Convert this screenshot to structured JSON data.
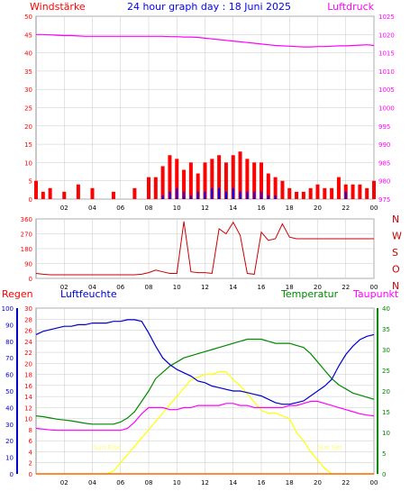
{
  "title": "24 hour graph day : 18 Juni 2025",
  "colors": {
    "wind": "#ff0000",
    "gust": "#0000ff",
    "pressure": "#ff00ff",
    "direction": "#cc0000",
    "humidity": "#0000cc",
    "temperature": "#008800",
    "dewpoint": "#ff00ff",
    "solar": "#ffff00",
    "uv": "#aaddff",
    "rain": "#ff6600",
    "plot_bg": "#ffffff",
    "grid": "#c8c8c8"
  },
  "x_ticks": [
    "02",
    "04",
    "06",
    "08",
    "10",
    "12",
    "14",
    "16",
    "18",
    "20",
    "22",
    "00"
  ],
  "chart_data": [
    {
      "type": "bar",
      "panel": "wind_pressure",
      "title": "24 hour graph day : 18 Juni 2025",
      "left_label": "Windstärke",
      "right_label": "Luftdruck",
      "x": [
        "00:00",
        "00:30",
        "01:00",
        "01:30",
        "02:00",
        "02:30",
        "03:00",
        "03:30",
        "04:00",
        "04:30",
        "05:00",
        "05:30",
        "06:00",
        "06:30",
        "07:00",
        "07:30",
        "08:00",
        "08:30",
        "09:00",
        "09:30",
        "10:00",
        "10:30",
        "11:00",
        "11:30",
        "12:00",
        "12:30",
        "13:00",
        "13:30",
        "14:00",
        "14:30",
        "15:00",
        "15:30",
        "16:00",
        "16:30",
        "17:00",
        "17:30",
        "18:00",
        "18:30",
        "19:00",
        "19:30",
        "20:00",
        "20:30",
        "21:00",
        "21:30",
        "22:00",
        "22:30",
        "23:00",
        "23:30",
        "24:00"
      ],
      "ylim_left": [
        0,
        50
      ],
      "ylim_right": [
        975,
        1025
      ],
      "yticks_left": [
        "0",
        "5",
        "10",
        "15",
        "20",
        "25",
        "30",
        "35",
        "40",
        "45",
        "50"
      ],
      "yticks_right": [
        "975",
        "980",
        "985",
        "990",
        "995",
        "1000",
        "1005",
        "1010",
        "1015",
        "1020",
        "1025"
      ],
      "series": [
        {
          "name": "",
          "axis": "left",
          "values": [
            5,
            2,
            3,
            0,
            2,
            0,
            4,
            0,
            3,
            0,
            0,
            2,
            0,
            0,
            3,
            0,
            6,
            6,
            9,
            12,
            11,
            8,
            10,
            7,
            10,
            11,
            12,
            10,
            12,
            13,
            11,
            10,
            10,
            7,
            6,
            5,
            3,
            2,
            2,
            3,
            4,
            3,
            3,
            6,
            4,
            4,
            4,
            3,
            5
          ]
        },
        {
          "name": "",
          "axis": "left",
          "values": [
            0,
            0,
            0,
            0,
            0,
            0,
            0,
            0,
            0,
            0,
            0,
            0,
            0,
            0,
            0,
            0,
            0,
            0,
            1,
            2,
            3,
            2,
            1,
            2,
            2,
            3,
            3,
            2,
            3,
            2,
            2,
            2,
            2,
            1,
            1,
            0,
            0,
            0,
            0,
            0,
            0,
            0,
            0,
            0,
            2,
            0,
            0,
            0,
            0
          ]
        },
        {
          "name": "",
          "axis": "right",
          "values": [
            1020.0,
            1020.0,
            1019.9,
            1019.8,
            1019.7,
            1019.7,
            1019.6,
            1019.5,
            1019.5,
            1019.5,
            1019.5,
            1019.5,
            1019.5,
            1019.5,
            1019.5,
            1019.5,
            1019.5,
            1019.5,
            1019.5,
            1019.4,
            1019.4,
            1019.3,
            1019.3,
            1019.2,
            1019.0,
            1018.8,
            1018.6,
            1018.4,
            1018.2,
            1018.0,
            1017.8,
            1017.6,
            1017.4,
            1017.2,
            1017.0,
            1016.9,
            1016.8,
            1016.7,
            1016.6,
            1016.6,
            1016.7,
            1016.7,
            1016.8,
            1016.9,
            1016.9,
            1017.0,
            1017.1,
            1017.2,
            1017.0
          ]
        }
      ]
    },
    {
      "type": "line",
      "panel": "wind_direction",
      "x": [
        "00:00",
        "00:30",
        "01:00",
        "01:30",
        "02:00",
        "02:30",
        "03:00",
        "03:30",
        "04:00",
        "04:30",
        "05:00",
        "05:30",
        "06:00",
        "06:30",
        "07:00",
        "07:30",
        "08:00",
        "08:30",
        "09:00",
        "09:30",
        "10:00",
        "10:30",
        "11:00",
        "11:30",
        "12:00",
        "12:30",
        "13:00",
        "13:30",
        "14:00",
        "14:30",
        "15:00",
        "15:30",
        "16:00",
        "16:30",
        "17:00",
        "17:30",
        "18:00",
        "18:30",
        "19:00",
        "19:30",
        "20:00",
        "20:30",
        "21:00",
        "21:30",
        "22:00",
        "22:30",
        "23:00",
        "23:30",
        "24:00"
      ],
      "ylim": [
        0,
        360
      ],
      "yticks": [
        "0",
        "90",
        "180",
        "270",
        "360"
      ],
      "compass": [
        "N",
        "W",
        "S",
        "O",
        "N"
      ],
      "series": [
        {
          "name": "",
          "values": [
            30,
            25,
            22,
            22,
            22,
            22,
            22,
            22,
            22,
            22,
            22,
            22,
            22,
            22,
            22,
            25,
            35,
            50,
            40,
            30,
            30,
            345,
            40,
            35,
            35,
            30,
            300,
            270,
            340,
            260,
            30,
            25,
            280,
            230,
            240,
            330,
            250,
            240,
            240,
            240,
            240,
            240,
            240,
            240,
            240,
            240,
            240,
            240,
            240
          ]
        }
      ]
    },
    {
      "type": "line",
      "panel": "climate",
      "left_labels": [
        "Regen",
        "Luftfeuchte"
      ],
      "right_labels": [
        "Temperatur",
        "Taupunkt"
      ],
      "sun_labels": {
        "rise": "Sun Rise",
        "set": "Sun Set"
      },
      "sun_times": [
        "05:00",
        "21:00"
      ],
      "x": [
        "00:00",
        "00:30",
        "01:00",
        "01:30",
        "02:00",
        "02:30",
        "03:00",
        "03:30",
        "04:00",
        "04:30",
        "05:00",
        "05:30",
        "06:00",
        "06:30",
        "07:00",
        "07:30",
        "08:00",
        "08:30",
        "09:00",
        "09:30",
        "10:00",
        "10:30",
        "11:00",
        "11:30",
        "12:00",
        "12:30",
        "13:00",
        "13:30",
        "14:00",
        "14:30",
        "15:00",
        "15:30",
        "16:00",
        "16:30",
        "17:00",
        "17:30",
        "18:00",
        "18:30",
        "19:00",
        "19:30",
        "20:00",
        "20:30",
        "21:00",
        "21:30",
        "22:00",
        "22:30",
        "23:00",
        "23:30",
        "24:00"
      ],
      "humidity_axis": {
        "ylim": [
          0,
          100
        ],
        "ticks": [
          "0",
          "10",
          "20",
          "30",
          "40",
          "50",
          "60",
          "70",
          "80",
          "90",
          "100"
        ]
      },
      "rain_axis": {
        "ylim": [
          0,
          30
        ],
        "ticks": [
          "0",
          "2",
          "4",
          "6",
          "8",
          "10",
          "12",
          "14",
          "16",
          "18",
          "20",
          "22",
          "24",
          "26",
          "28",
          "30"
        ]
      },
      "temp_axis": {
        "ylim": [
          0,
          40
        ],
        "ticks": [
          "0",
          "5",
          "10",
          "15",
          "20",
          "25",
          "30",
          "35",
          "40"
        ]
      },
      "series": [
        {
          "name": "Luftfeuchte",
          "axis": "humidity",
          "values": [
            84,
            86,
            87,
            88,
            89,
            89,
            90,
            90,
            91,
            91,
            91,
            92,
            92,
            93,
            93,
            92,
            85,
            77,
            70,
            66,
            63,
            61,
            59,
            56,
            55,
            53,
            52,
            51,
            50,
            50,
            49,
            48,
            47,
            45,
            43,
            42,
            42,
            43,
            44,
            47,
            50,
            53,
            57,
            65,
            72,
            77,
            81,
            83,
            84
          ]
        },
        {
          "name": "Temperatur",
          "axis": "temp",
          "values": [
            14.0,
            13.8,
            13.5,
            13.2,
            13.0,
            12.8,
            12.5,
            12.2,
            12.0,
            12.0,
            12.0,
            12.0,
            12.5,
            13.5,
            15.0,
            17.5,
            20.0,
            23.0,
            24.5,
            26.0,
            27.0,
            28.0,
            28.5,
            29.0,
            29.5,
            30.0,
            30.5,
            31.0,
            31.5,
            32.0,
            32.5,
            32.5,
            32.5,
            32.0,
            31.5,
            31.5,
            31.5,
            31.0,
            30.5,
            29.0,
            27.0,
            25.0,
            23.0,
            21.5,
            20.5,
            19.5,
            19.0,
            18.5,
            18.0
          ]
        },
        {
          "name": "Taupunkt",
          "axis": "temp",
          "values": [
            11.0,
            10.8,
            10.6,
            10.5,
            10.5,
            10.5,
            10.5,
            10.5,
            10.5,
            10.5,
            10.5,
            10.5,
            10.5,
            11.0,
            12.5,
            14.5,
            16.0,
            16.0,
            16.0,
            15.5,
            15.5,
            16.0,
            16.0,
            16.5,
            16.5,
            16.5,
            16.5,
            17.0,
            17.0,
            16.5,
            16.5,
            16.0,
            16.0,
            16.0,
            16.0,
            16.0,
            16.5,
            16.5,
            17.0,
            17.5,
            17.5,
            17.0,
            16.5,
            16.0,
            15.5,
            15.0,
            14.5,
            14.2,
            14.0
          ]
        },
        {
          "name": "",
          "axis": "rain",
          "values": [
            0,
            0,
            0,
            0,
            0,
            0,
            0,
            0,
            0,
            0,
            0,
            0,
            0,
            0,
            0,
            0,
            0,
            0,
            0,
            0,
            0,
            0,
            0,
            0,
            0,
            0,
            0,
            0,
            0,
            0,
            0,
            0,
            0,
            0,
            0,
            0,
            0,
            0,
            0,
            0,
            0,
            0,
            0,
            0,
            0,
            0,
            0,
            0,
            0
          ]
        }
      ],
      "solar": {
        "axis": "rain",
        "values": [
          0,
          0,
          0,
          0,
          0,
          0,
          0,
          0,
          0,
          0,
          0,
          0.5,
          2,
          3.5,
          5,
          6.5,
          8,
          9.5,
          11,
          12.5,
          14,
          15.5,
          17,
          17.5,
          18,
          18,
          18.5,
          18.5,
          17,
          16,
          14.5,
          13,
          11.5,
          11,
          11,
          10.5,
          10,
          7.5,
          6,
          4,
          2.5,
          1,
          0,
          0,
          0,
          0,
          0,
          0,
          0
        ]
      },
      "uv": {
        "axis": "rain",
        "values": [
          0,
          0,
          0,
          0,
          0,
          0,
          0,
          0,
          0,
          0,
          0,
          0,
          0,
          0,
          0,
          0,
          0,
          0,
          0,
          0,
          0,
          0,
          0,
          0,
          0,
          0,
          0,
          0,
          0,
          0,
          0,
          0,
          0,
          0,
          0,
          0,
          0,
          0,
          0,
          0,
          0,
          0,
          0,
          0,
          0,
          0,
          0,
          0,
          0
        ]
      }
    }
  ]
}
